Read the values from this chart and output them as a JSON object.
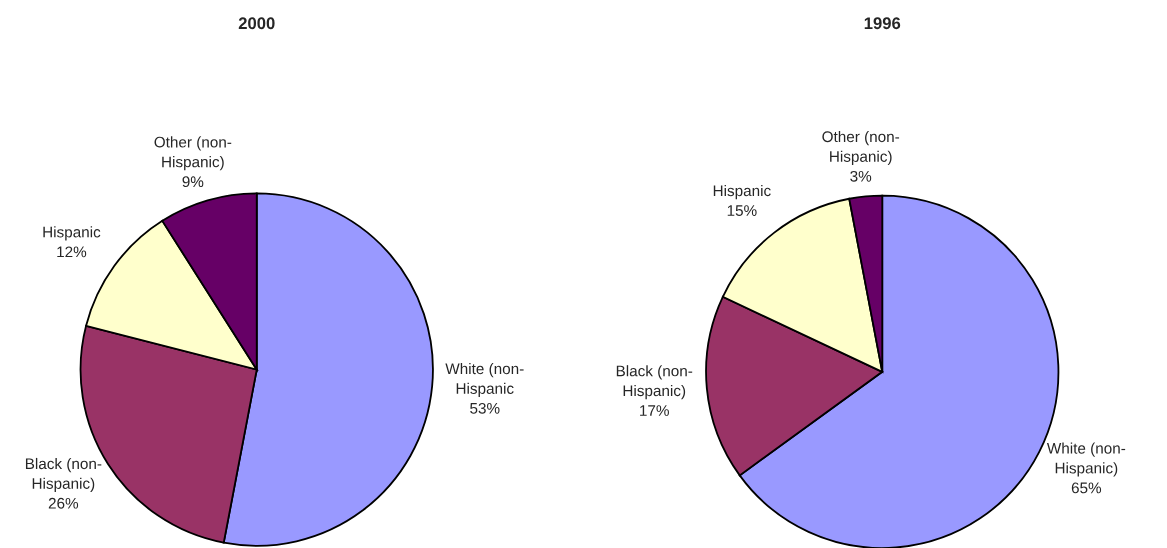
{
  "chart_data": [
    {
      "type": "pie",
      "title": "2000",
      "categories": [
        "White (non-Hispanic",
        "Black (non-Hispanic)",
        "Hispanic",
        "Other (non-Hispanic)"
      ],
      "values": [
        53,
        26,
        12,
        9
      ],
      "value_labels": [
        "53%",
        "26%",
        "12%",
        "9%"
      ],
      "colors": [
        "#9999ff",
        "#993366",
        "#ffffcc",
        "#660066"
      ],
      "legend": false
    },
    {
      "type": "pie",
      "title": "1996",
      "categories": [
        "White (non-Hispanic)",
        "Black (non-Hispanic)",
        "Hispanic",
        "Other (non-Hispanic)"
      ],
      "values": [
        65,
        17,
        15,
        3
      ],
      "value_labels": [
        "65%",
        "17%",
        "15%",
        "3%"
      ],
      "colors": [
        "#9999ff",
        "#993366",
        "#ffffcc",
        "#660066"
      ],
      "legend": false
    }
  ]
}
